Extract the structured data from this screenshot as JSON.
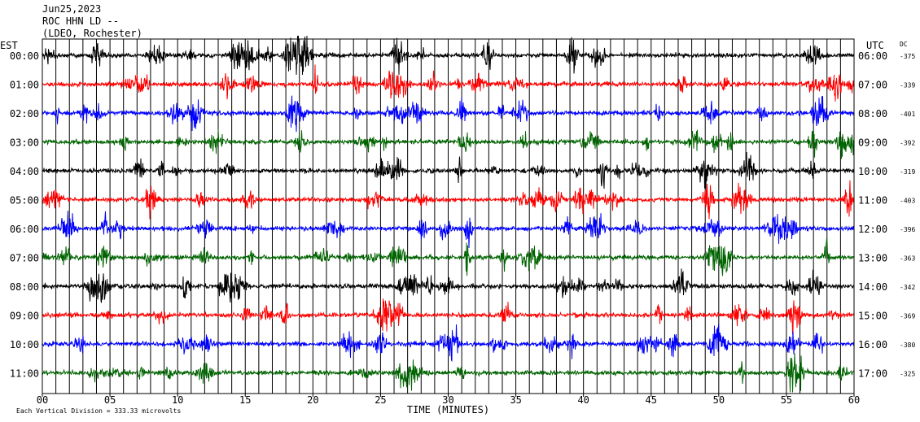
{
  "header": {
    "date": "Jun25,2023",
    "station": "ROC HHN LD --",
    "network": "(LDEO, Rochester)"
  },
  "chart_data": {
    "type": "line",
    "left_axis_title": "EST",
    "right_axis_title": "UTC",
    "dc_title": "DC",
    "x_axis_title": "TIME (MINUTES)",
    "xlim": [
      0,
      60
    ],
    "x_ticks": [
      "00",
      "05",
      "10",
      "15",
      "20",
      "25",
      "30",
      "35",
      "40",
      "45",
      "50",
      "55",
      "60"
    ],
    "grid": true,
    "footnote": "Each Vertical Division =  333.33 microvolts",
    "trace_colors": [
      "#000000",
      "#ff0000",
      "#0000ff",
      "#006400"
    ],
    "rows": [
      {
        "est": "00:00",
        "utc": "06:00",
        "dc": "-375"
      },
      {
        "est": "01:00",
        "utc": "07:00",
        "dc": "-339"
      },
      {
        "est": "02:00",
        "utc": "08:00",
        "dc": "-401"
      },
      {
        "est": "03:00",
        "utc": "09:00",
        "dc": "-392"
      },
      {
        "est": "04:00",
        "utc": "10:00",
        "dc": "-319"
      },
      {
        "est": "05:00",
        "utc": "11:00",
        "dc": "-403"
      },
      {
        "est": "06:00",
        "utc": "12:00",
        "dc": "-396"
      },
      {
        "est": "07:00",
        "utc": "13:00",
        "dc": "-363"
      },
      {
        "est": "08:00",
        "utc": "14:00",
        "dc": "-342"
      },
      {
        "est": "09:00",
        "utc": "15:00",
        "dc": "-369"
      },
      {
        "est": "10:00",
        "utc": "16:00",
        "dc": "-380"
      },
      {
        "est": "11:00",
        "utc": "17:00",
        "dc": "-325"
      }
    ]
  }
}
